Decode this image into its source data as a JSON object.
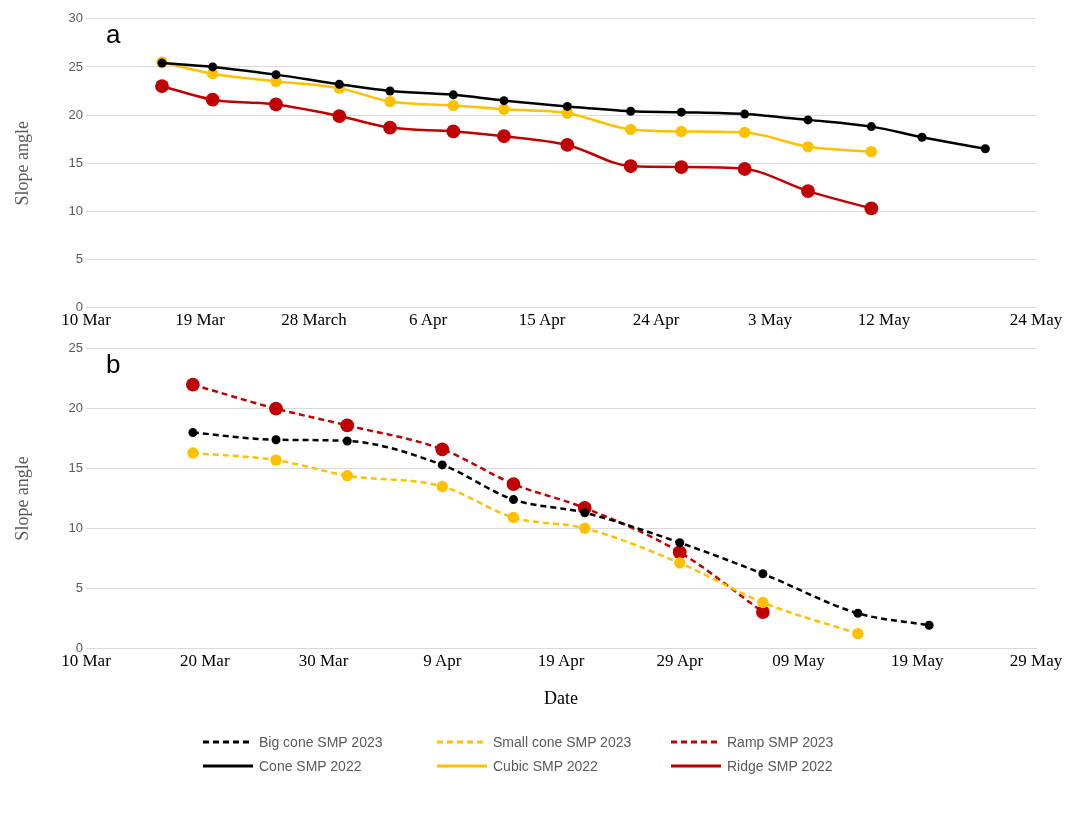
{
  "chart_data": [
    {
      "type": "line",
      "ylabel": "Slope angle",
      "annotations": [
        "a"
      ],
      "xlim": [
        "--03-10",
        "--05-24"
      ],
      "xticks": [
        {
          "value": "--03-10",
          "label": "10 Mar"
        },
        {
          "value": "--03-19",
          "label": "19 Mar"
        },
        {
          "value": "--03-28",
          "label": "28 March"
        },
        {
          "value": "--04-06",
          "label": "6 Apr"
        },
        {
          "value": "--04-15",
          "label": "15 Apr"
        },
        {
          "value": "--04-24",
          "label": "24 Apr"
        },
        {
          "value": "--05-03",
          "label": "3 May"
        },
        {
          "value": "--05-12",
          "label": "12 May"
        },
        {
          "value": "--05-24",
          "label": "24 May"
        }
      ],
      "ylim": [
        0,
        30
      ],
      "yticks": [
        0,
        5,
        10,
        15,
        20,
        25,
        30
      ],
      "grid": "y",
      "marker": "circle",
      "line_style": "solid",
      "legend": "bottom",
      "x": [
        "--03-16",
        "--03-20",
        "--03-25",
        "--03-30",
        "--04-03",
        "--04-08",
        "--04-12",
        "--04-17",
        "--04-22",
        "--04-26",
        "--05-01",
        "--05-06",
        "--05-11",
        "--05-15",
        "--05-20"
      ],
      "series": [
        {
          "name": "Cone SMP 2022",
          "color": "#000000",
          "values": [
            25.4,
            25.0,
            24.2,
            23.2,
            22.5,
            22.1,
            21.5,
            20.9,
            20.4,
            20.3,
            20.1,
            19.5,
            18.8,
            17.7,
            16.5
          ]
        },
        {
          "name": "Cubic SMP 2022",
          "color": "#ffc000",
          "values": [
            25.5,
            24.3,
            23.5,
            22.8,
            21.4,
            21.0,
            20.6,
            20.2,
            18.5,
            18.3,
            18.2,
            16.7,
            16.2,
            null,
            null
          ]
        },
        {
          "name": "Ridge  SMP 2022",
          "color": "#c00000",
          "values": [
            23.0,
            21.6,
            21.1,
            19.9,
            18.7,
            18.3,
            17.8,
            16.9,
            14.7,
            14.6,
            14.4,
            12.1,
            10.3,
            null,
            null
          ]
        }
      ]
    },
    {
      "type": "line",
      "ylabel": "Slope angle",
      "xlabel": "Date",
      "annotations": [
        "b"
      ],
      "xlim": [
        "--03-10",
        "--05-29"
      ],
      "xticks": [
        {
          "value": "--03-10",
          "label": "10 Mar"
        },
        {
          "value": "--03-20",
          "label": "20 Mar"
        },
        {
          "value": "--03-30",
          "label": "30 Mar"
        },
        {
          "value": "--04-09",
          "label": "9 Apr"
        },
        {
          "value": "--04-19",
          "label": "19 Apr"
        },
        {
          "value": "--04-29",
          "label": "29 Apr"
        },
        {
          "value": "--05-09",
          "label": "09 May"
        },
        {
          "value": "--05-19",
          "label": "19 May"
        },
        {
          "value": "--05-29",
          "label": "29 May"
        }
      ],
      "ylim": [
        0,
        25
      ],
      "yticks": [
        0,
        5,
        10,
        15,
        20,
        25
      ],
      "grid": "y",
      "marker": "circle",
      "line_style": "dashed",
      "legend": "bottom",
      "x": [
        "--03-19",
        "--03-26",
        "--04-01",
        "--04-09",
        "--04-15",
        "--04-21",
        "--04-29",
        "--05-06",
        "--05-14",
        "--05-20"
      ],
      "series": [
        {
          "name": "Big cone SMP 2023",
          "color": "#000000",
          "values": [
            18.0,
            17.4,
            17.3,
            15.3,
            12.4,
            11.3,
            8.8,
            6.2,
            2.9,
            1.9
          ]
        },
        {
          "name": "Small cone SMP 2023",
          "color": "#ffc000",
          "values": [
            16.3,
            15.7,
            14.4,
            13.5,
            10.9,
            10.0,
            7.1,
            3.8,
            1.2,
            null
          ]
        },
        {
          "name": "Ramp SMP 2023",
          "color": "#c00000",
          "values": [
            22.0,
            20.0,
            18.6,
            16.6,
            13.7,
            11.7,
            8.0,
            3.0,
            null,
            null
          ]
        }
      ]
    }
  ]
}
